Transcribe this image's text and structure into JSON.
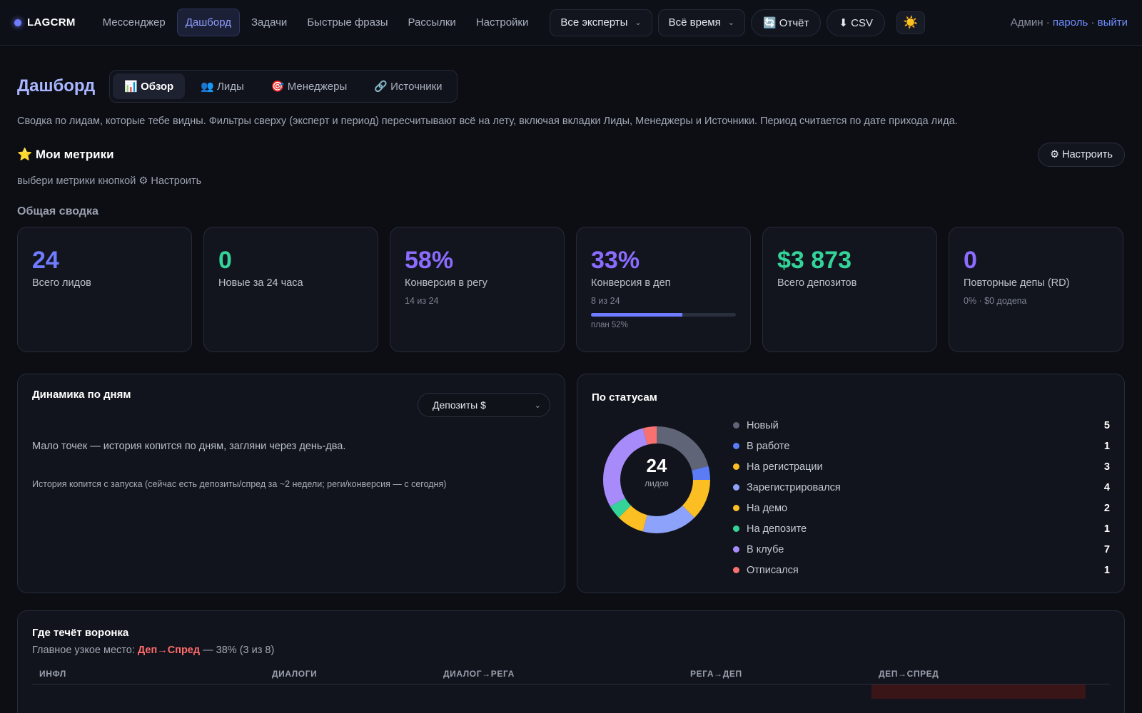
{
  "nav": {
    "brand": "LAGCRM",
    "items": [
      "Мессенджер",
      "Дашборд",
      "Задачи",
      "Быстрые фразы",
      "Рассылки",
      "Настройки"
    ],
    "active": "Дашборд",
    "expert_filter": "Все эксперты",
    "period_filter": "Всё время",
    "report_label": "🔄 Отчёт",
    "csv_label": "⬇ CSV",
    "theme_icon": "☀️",
    "user": "Админ",
    "password_link": "пароль",
    "logout_link": "выйти"
  },
  "page": {
    "title": "Дашборд",
    "tabs": [
      "📊 Обзор",
      "👥 Лиды",
      "🎯 Менеджеры",
      "🔗 Источники"
    ],
    "description": "Сводка по лидам, которые тебе видны. Фильтры сверху (эксперт и период) пересчитывают всё на лету, включая вкладки Лиды, Менеджеры и Источники. Период считается по дате прихода лида.",
    "metrics_title": "⭐ Мои метрики",
    "configure_label": "⚙ Настроить",
    "metrics_hint": "выбери метрики кнопкой ⚙ Настроить",
    "summary_title": "Общая сводка"
  },
  "kpis": [
    {
      "value": "24",
      "label": "Всего лидов",
      "sub": "",
      "color": "#6f7cff"
    },
    {
      "value": "0",
      "label": "Новые за 24 часа",
      "sub": "",
      "color": "#34d399"
    },
    {
      "value": "58%",
      "label": "Конверсия в регу",
      "sub": "14 из 24",
      "color": "#8b6cff"
    },
    {
      "value": "33%",
      "label": "Конверсия в деп",
      "sub": "8 из 24",
      "color": "#8b6cff",
      "progress": 0.63,
      "plan_label": "план 52%"
    },
    {
      "value": "$3 873",
      "label": "Всего депозитов",
      "sub": "",
      "color": "#34d399"
    },
    {
      "value": "0",
      "label": "Повторные депы (RD)",
      "sub": "0% · $0 додепа",
      "color": "#8b6cff"
    }
  ],
  "dynamics": {
    "title": "Динамика по дням",
    "metric_select": "Депозиты $",
    "message": "Мало точек — история копится по дням, загляни через день-два.",
    "note": "История копится с запуска (сейчас есть депозиты/спред за ~2 недели; реги/конверсия — с сегодня)"
  },
  "statuses": {
    "title": "По статусам",
    "total": "24",
    "total_label": "лидов",
    "items": [
      {
        "name": "Новый",
        "count": 5,
        "color": "#5f6577"
      },
      {
        "name": "В работе",
        "count": 1,
        "color": "#5b7cf5"
      },
      {
        "name": "На регистрации",
        "count": 3,
        "color": "#fbbf24"
      },
      {
        "name": "Зарегистрировался",
        "count": 4,
        "color": "#8da2fb"
      },
      {
        "name": "На демо",
        "count": 2,
        "color": "#fbbf24"
      },
      {
        "name": "На депозите",
        "count": 1,
        "color": "#34d399"
      },
      {
        "name": "В клубе",
        "count": 7,
        "color": "#a78bfa"
      },
      {
        "name": "Отписался",
        "count": 1,
        "color": "#f87171"
      }
    ]
  },
  "funnel": {
    "title": "Где течёт воронка",
    "bottleneck_prefix": "Главное узкое место:",
    "bottleneck_stage": "Деп→Спред",
    "bottleneck_suffix": "— 38% (3 из 8)",
    "columns": [
      "ИНФЛ",
      "ДИАЛОГИ",
      "ДИАЛОГ→РЕГА",
      "РЕГА→ДЕП",
      "ДЕП→СПРЕД"
    ]
  }
}
